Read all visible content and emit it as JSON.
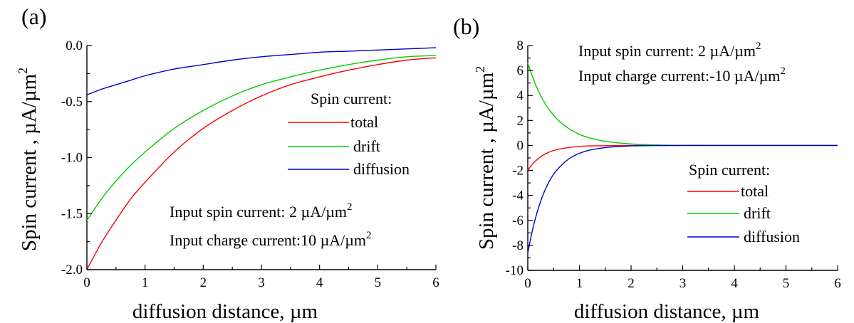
{
  "chart_data": [
    {
      "type": "line",
      "panel_label": "(a)",
      "xlabel": "diffusion distance, µm",
      "ylabel": "Spin current , µA/µm",
      "ylabel_sup": "2",
      "xlim": [
        0,
        6
      ],
      "ylim": [
        -2.0,
        0.0
      ],
      "xticks": [
        0,
        1,
        2,
        3,
        4,
        5,
        6
      ],
      "yticks": [
        -2.0,
        -1.5,
        -1.0,
        -0.5,
        0.0
      ],
      "ytick_labels": [
        "-2.0",
        "-1.5",
        "-1.0",
        "-0.5",
        "0.0"
      ],
      "legend_title": "Spin current:",
      "legend_position": "center-right",
      "annotations": [
        {
          "text": "Input spin current: 2 µA/µm",
          "sup": "2"
        },
        {
          "text": "Input charge current:10 µA/µm",
          "sup": "2"
        }
      ],
      "x": [
        0,
        0.25,
        0.5,
        0.75,
        1,
        1.5,
        2,
        2.5,
        3,
        3.5,
        4,
        4.5,
        5,
        5.5,
        6
      ],
      "series": [
        {
          "name": "total",
          "color": "#ff0000",
          "values": [
            -2.0,
            -1.76,
            -1.56,
            -1.37,
            -1.22,
            -0.95,
            -0.74,
            -0.58,
            -0.45,
            -0.35,
            -0.28,
            -0.22,
            -0.17,
            -0.13,
            -0.11
          ]
        },
        {
          "name": "drift",
          "color": "#00cc00",
          "values": [
            -1.56,
            -1.37,
            -1.21,
            -1.07,
            -0.95,
            -0.74,
            -0.58,
            -0.45,
            -0.35,
            -0.28,
            -0.22,
            -0.17,
            -0.13,
            -0.1,
            -0.09
          ]
        },
        {
          "name": "diffusion",
          "color": "#0000cc",
          "values": [
            -0.44,
            -0.39,
            -0.35,
            -0.31,
            -0.27,
            -0.21,
            -0.17,
            -0.13,
            -0.1,
            -0.08,
            -0.06,
            -0.05,
            -0.04,
            -0.03,
            -0.02
          ]
        }
      ]
    },
    {
      "type": "line",
      "panel_label": "(b)",
      "xlabel": "diffusion distance, µm",
      "ylabel": "Spin current , µA/µm",
      "ylabel_sup": "2",
      "xlim": [
        0,
        6
      ],
      "ylim": [
        -10,
        8
      ],
      "xticks": [
        0,
        1,
        2,
        3,
        4,
        5,
        6
      ],
      "yticks": [
        -10,
        -8,
        -6,
        -4,
        -2,
        0,
        2,
        4,
        6,
        8
      ],
      "ytick_labels": [
        "-10",
        "-8",
        "-6",
        "-4",
        "-2",
        "0",
        "2",
        "4",
        "6",
        "8"
      ],
      "legend_title": "Spin current:",
      "legend_position": "bottom-right",
      "annotations": [
        {
          "text": "Input spin current: 2 µA/µm",
          "sup": "2"
        },
        {
          "text": "Input charge current:-10 µA/µm",
          "sup": "2"
        }
      ],
      "x": [
        0,
        0.1,
        0.2,
        0.3,
        0.4,
        0.5,
        0.6,
        0.8,
        1.0,
        1.2,
        1.5,
        2.0,
        2.5,
        3.0,
        4.0,
        5.0,
        6.0
      ],
      "series": [
        {
          "name": "total",
          "color": "#ff0000",
          "values": [
            -2.0,
            -1.45,
            -1.06,
            -0.77,
            -0.56,
            -0.41,
            -0.3,
            -0.16,
            -0.08,
            -0.04,
            -0.02,
            0.0,
            0.0,
            0.0,
            0.0,
            0.0,
            0.0
          ]
        },
        {
          "name": "drift",
          "color": "#00cc00",
          "values": [
            6.6,
            5.4,
            4.4,
            3.6,
            2.95,
            2.42,
            1.98,
            1.33,
            0.89,
            0.6,
            0.33,
            0.12,
            0.04,
            0.01,
            0.0,
            0.0,
            0.0
          ]
        },
        {
          "name": "diffusion",
          "color": "#0000cc",
          "values": [
            -8.6,
            -6.6,
            -5.1,
            -3.9,
            -3.0,
            -2.3,
            -1.8,
            -1.06,
            -0.63,
            -0.37,
            -0.17,
            -0.04,
            -0.01,
            0.0,
            0.0,
            0.0,
            0.0
          ]
        }
      ]
    }
  ]
}
